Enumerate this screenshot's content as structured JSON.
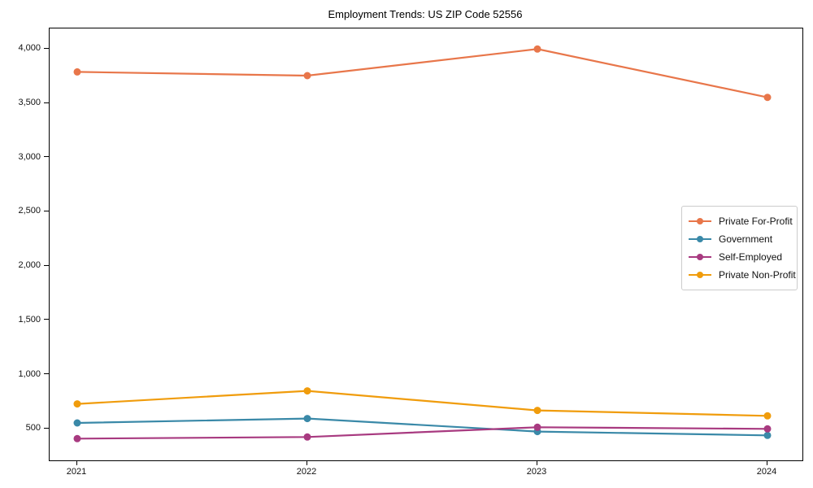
{
  "chart_data": {
    "type": "line",
    "title": "Employment Trends: US ZIP Code 52556",
    "xlabel": "",
    "ylabel": "",
    "grid": false,
    "legend_position": "center-right",
    "categories": [
      "2021",
      "2022",
      "2023",
      "2024"
    ],
    "series": [
      {
        "name": "Private For-Profit",
        "color": "#E8764A",
        "values": [
          3790,
          3755,
          4000,
          3555
        ]
      },
      {
        "name": "Government",
        "color": "#3A89A8",
        "values": [
          555,
          595,
          475,
          440
        ]
      },
      {
        "name": "Self-Employed",
        "color": "#A83A80",
        "values": [
          410,
          425,
          515,
          500
        ]
      },
      {
        "name": "Private Non-Profit",
        "color": "#F09C0C",
        "values": [
          730,
          850,
          670,
          620
        ]
      }
    ],
    "y_ticks": [
      {
        "value": 500,
        "label": "500"
      },
      {
        "value": 1000,
        "label": "1,000"
      },
      {
        "value": 1500,
        "label": "1,500"
      },
      {
        "value": 2000,
        "label": "2,000"
      },
      {
        "value": 2500,
        "label": "2,500"
      },
      {
        "value": 3000,
        "label": "3,000"
      },
      {
        "value": 3500,
        "label": "3,500"
      },
      {
        "value": 4000,
        "label": "4,000"
      }
    ],
    "ylim": [
      210,
      4190
    ]
  }
}
